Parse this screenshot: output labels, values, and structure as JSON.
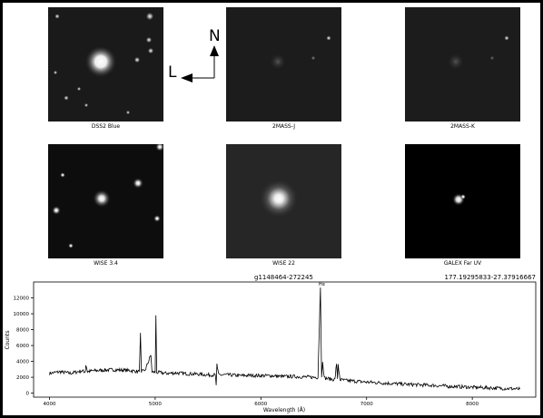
{
  "panels": [
    {
      "caption": "DSS2 Blue"
    },
    {
      "caption": "2MASS-J"
    },
    {
      "caption": "2MASS-K"
    },
    {
      "caption": "WISE 3.4"
    },
    {
      "caption": "WISE 22"
    },
    {
      "caption": "GALEX Far UV"
    }
  ],
  "compass": {
    "north": "N",
    "east": "L"
  },
  "spectrum": {
    "object_id": "g1148464-272245",
    "coordinates": "177.19295833-27.37916667",
    "line_label": "Hα"
  },
  "chart_data": {
    "type": "line",
    "title": "g1148464-272245",
    "xlabel": "Wavelength (Å)",
    "ylabel": "Counts",
    "xlim": [
      3850,
      8600
    ],
    "ylim": [
      -500,
      14000
    ],
    "xticks": [
      4000,
      5000,
      6000,
      7000,
      8000
    ],
    "yticks": [
      0,
      2000,
      4000,
      6000,
      8000,
      10000,
      12000
    ],
    "series": [
      {
        "x": [
          4000,
          4050,
          4100,
          4200,
          4300,
          4340,
          4345,
          4360,
          4400,
          4500,
          4600,
          4700,
          4800,
          4850,
          4861,
          4870,
          4900,
          4959,
          4970,
          5000,
          5007,
          5015,
          5050,
          5100,
          5200,
          5300,
          5400,
          5500,
          5570,
          5577,
          5584,
          5600,
          5700,
          5800,
          5900,
          6000,
          6100,
          6200,
          6300,
          6400,
          6500,
          6540,
          6563,
          6575,
          6584,
          6600,
          6650,
          6700,
          6716,
          6725,
          6731,
          6750,
          6800,
          6900,
          7000,
          7200,
          7400,
          7600,
          7800,
          8000,
          8200,
          8400,
          8450
        ],
        "y": [
          2500,
          2600,
          2700,
          2500,
          2800,
          2700,
          3600,
          2700,
          2800,
          2900,
          2950,
          2900,
          2800,
          2700,
          7600,
          2800,
          2700,
          4800,
          2700,
          2600,
          9800,
          2600,
          2600,
          2500,
          2550,
          2450,
          2400,
          2300,
          2300,
          1000,
          3600,
          2300,
          2300,
          2200,
          2250,
          2200,
          2200,
          2100,
          2100,
          2050,
          2000,
          2000,
          13300,
          2000,
          4100,
          1900,
          1800,
          1700,
          3700,
          1800,
          3500,
          1700,
          1600,
          1500,
          1400,
          1250,
          1100,
          1000,
          850,
          750,
          650,
          550,
          500
        ]
      }
    ]
  }
}
